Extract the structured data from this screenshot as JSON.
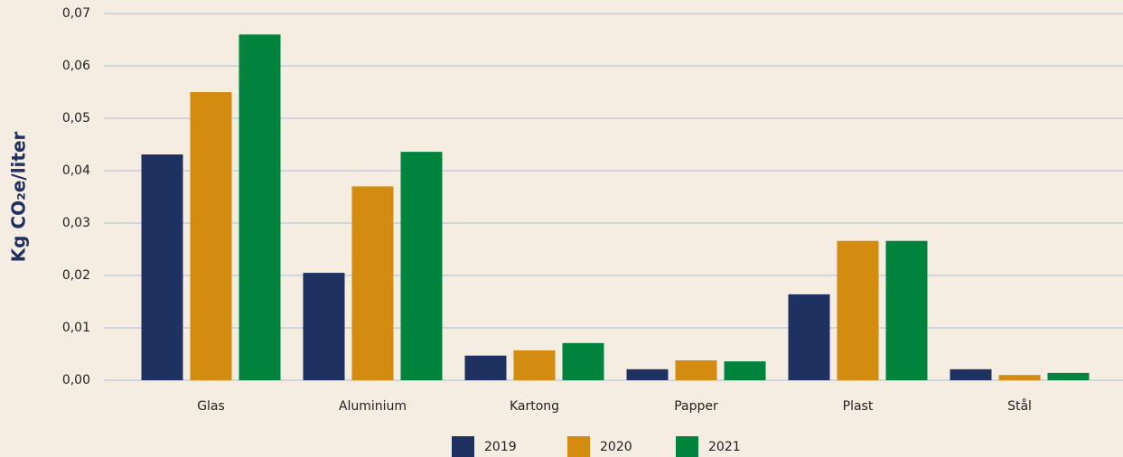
{
  "chart_data": {
    "type": "bar",
    "y_label": "Kg CO₂e/liter",
    "categories": [
      "Glas",
      "Aluminium",
      "Kartong",
      "Papper",
      "Plast",
      "Stål"
    ],
    "series": [
      {
        "name": "2019",
        "color": "#1f3160",
        "values": [
          0.0431,
          0.0205,
          0.0047,
          0.0021,
          0.0164,
          0.0021
        ]
      },
      {
        "name": "2020",
        "color": "#d38c10",
        "values": [
          0.055,
          0.037,
          0.0057,
          0.0038,
          0.0266,
          0.001
        ]
      },
      {
        "name": "2021",
        "color": "#00843d",
        "values": [
          0.066,
          0.0436,
          0.0071,
          0.0036,
          0.0266,
          0.0014
        ]
      }
    ],
    "ylim": [
      0,
      0.07
    ],
    "yticks": [
      {
        "value": 0,
        "label": "0,00"
      },
      {
        "value": 0.01,
        "label": "0,01"
      },
      {
        "value": 0.02,
        "label": "0,02"
      },
      {
        "value": 0.03,
        "label": "0,03"
      },
      {
        "value": 0.04,
        "label": "0,04"
      },
      {
        "value": 0.05,
        "label": "0,05"
      },
      {
        "value": 0.06,
        "label": "0,06"
      },
      {
        "value": 0.07,
        "label": "0,07"
      }
    ],
    "grid": true,
    "legend": "bottom"
  }
}
